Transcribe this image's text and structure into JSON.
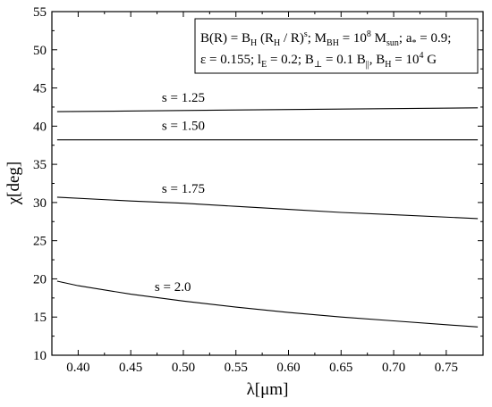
{
  "chart_data": {
    "type": "line",
    "xlabel": "λ[μm]",
    "ylabel": "χ[deg]",
    "xlim": [
      0.375,
      0.785
    ],
    "ylim": [
      10,
      55
    ],
    "xticks": [
      0.4,
      0.45,
      0.5,
      0.55,
      0.6,
      0.65,
      0.7,
      0.75
    ],
    "yticks": [
      10,
      15,
      20,
      25,
      30,
      35,
      40,
      45,
      50,
      55
    ],
    "legend_position": "top-right",
    "annotation_lines": [
      "B(R) = B_H (R_H / R)^s; M_BH = 10^8 M_sun; a_* = 0.9;",
      "ε = 0.155; l_E = 0.2; B_⊥ = 0.1 B_||, B_H = 10^4 G"
    ],
    "series": [
      {
        "name": "s = 1.25",
        "x": [
          0.38,
          0.78
        ],
        "y": [
          41.9,
          42.4
        ]
      },
      {
        "name": "s = 1.50",
        "x": [
          0.38,
          0.78
        ],
        "y": [
          38.2,
          38.2
        ]
      },
      {
        "name": "s = 1.75",
        "x": [
          0.38,
          0.45,
          0.5,
          0.55,
          0.6,
          0.65,
          0.7,
          0.78
        ],
        "y": [
          30.7,
          30.2,
          29.9,
          29.5,
          29.1,
          28.7,
          28.4,
          27.9
        ]
      },
      {
        "name": "s = 2.0",
        "x": [
          0.38,
          0.4,
          0.45,
          0.5,
          0.55,
          0.6,
          0.65,
          0.7,
          0.75,
          0.78
        ],
        "y": [
          19.7,
          19.1,
          18.0,
          17.1,
          16.3,
          15.6,
          15.0,
          14.5,
          14.0,
          13.7
        ]
      }
    ],
    "series_labels": [
      {
        "text": "s = 1.25",
        "x": 0.5,
        "y": 43.2
      },
      {
        "text": "s = 1.50",
        "x": 0.5,
        "y": 39.5
      },
      {
        "text": "s = 1.75",
        "x": 0.5,
        "y": 31.3
      },
      {
        "text": "s = 2.0",
        "x": 0.49,
        "y": 18.4
      }
    ]
  }
}
